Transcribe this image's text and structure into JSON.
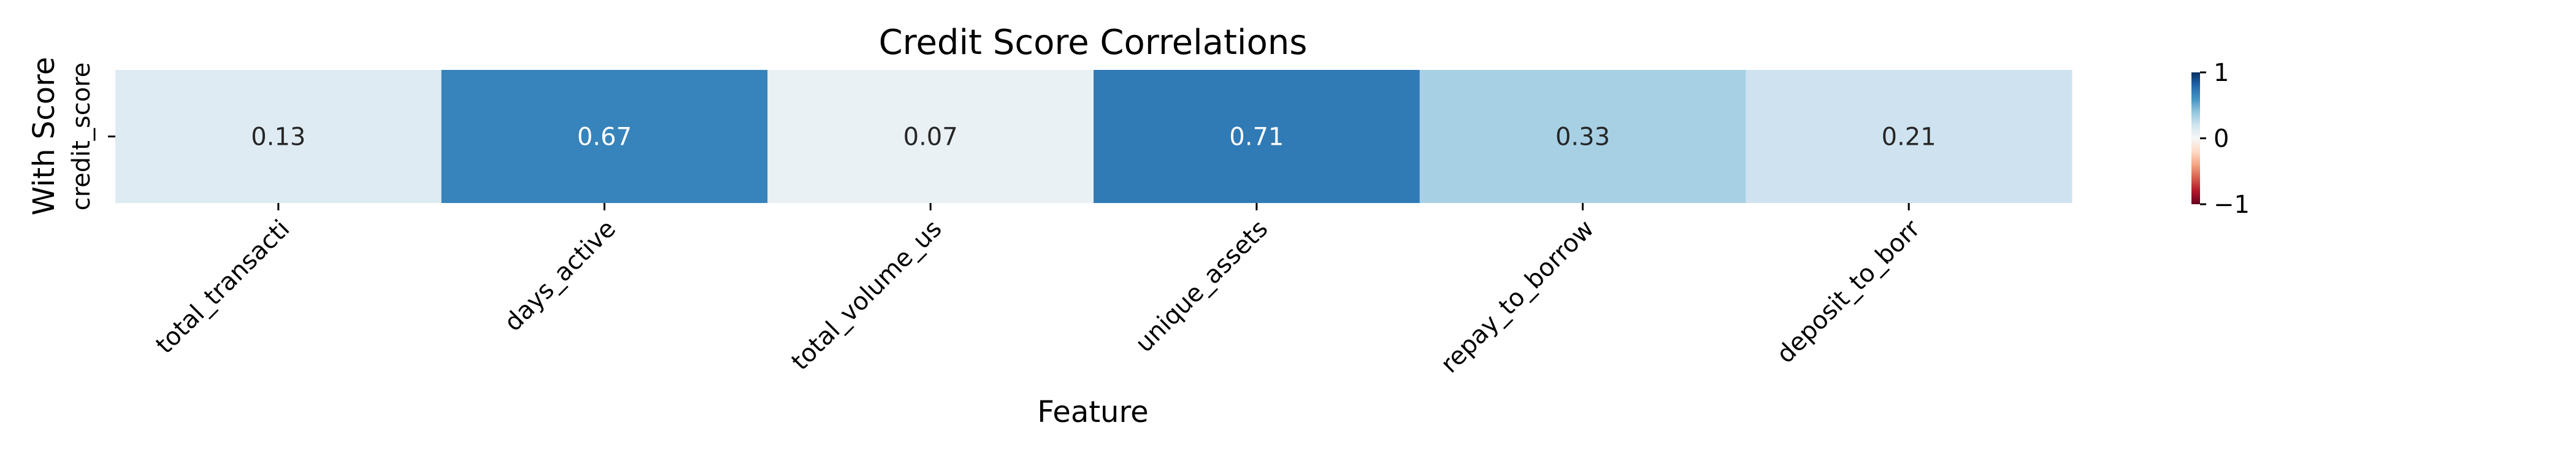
{
  "chart_data": {
    "type": "heatmap",
    "title": "Credit Score Correlations",
    "xlabel": "Feature",
    "ylabel": "With Score",
    "rows": [
      "credit_score"
    ],
    "columns": [
      "total_transacti",
      "days_active",
      "total_volume_us",
      "unique_assets",
      "repay_to_borrow",
      "deposit_to_borr"
    ],
    "values": [
      [
        0.13,
        0.67,
        0.07,
        0.71,
        0.33,
        0.21
      ]
    ],
    "value_range": [
      -1,
      1
    ],
    "colormap": "RdBu",
    "colorbar": {
      "ticks": [
        1,
        0,
        -1
      ],
      "tick_labels": [
        "1",
        "0",
        "−1"
      ]
    },
    "grid": false,
    "legend": "colorbar-right"
  }
}
